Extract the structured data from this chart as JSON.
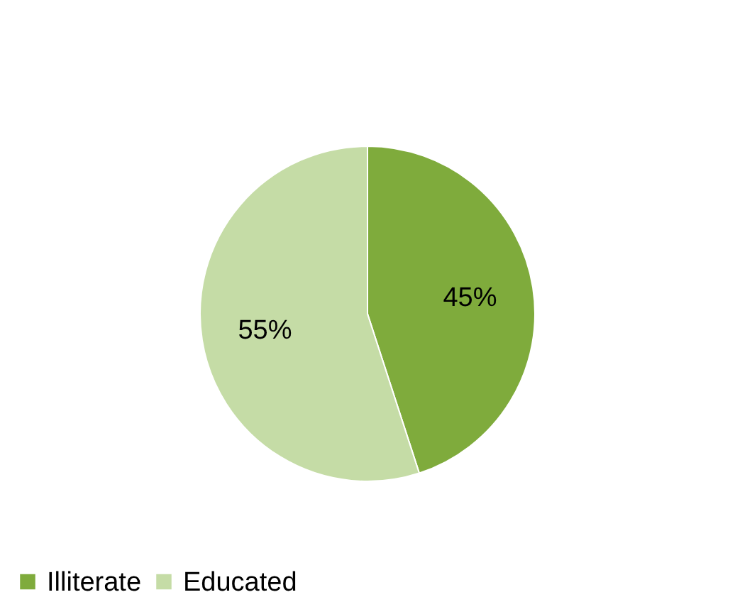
{
  "chart_data": {
    "type": "pie",
    "categories": [
      "Illiterate",
      "Educated"
    ],
    "values": [
      45,
      55
    ],
    "colors": [
      "#7fab3c",
      "#c5dca6"
    ],
    "value_labels": [
      "45%",
      "55%"
    ],
    "legend": "bottom"
  }
}
